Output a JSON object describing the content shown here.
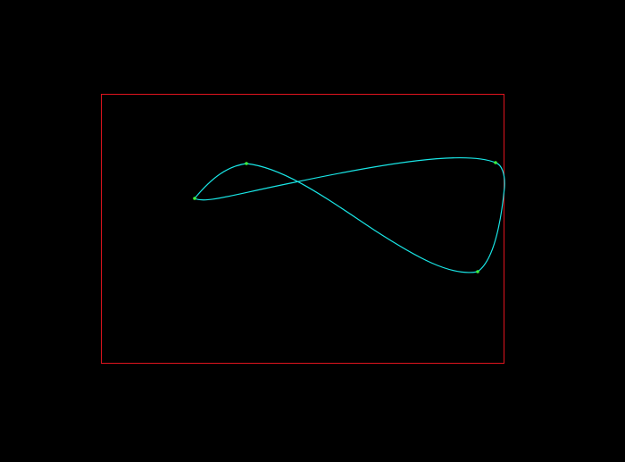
{
  "canvas": {
    "background_color": "#000000"
  },
  "bounding_box": {
    "stroke_color": "#e0141e"
  },
  "curve": {
    "stroke_color": "#19e6e6",
    "shape": "closed figure-eight spline"
  },
  "control_points": {
    "fill_color": "#3cf03c",
    "count": 4
  }
}
